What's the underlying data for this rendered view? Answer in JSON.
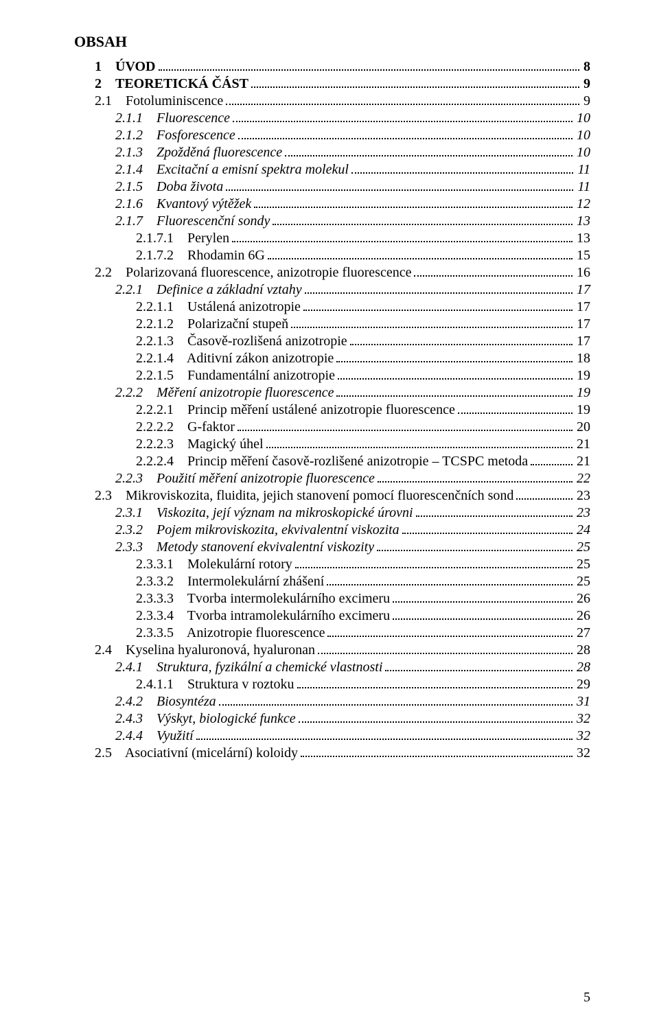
{
  "title": "OBSAH",
  "page_number": "5",
  "font": {
    "family": "Times New Roman",
    "base_size_pt": 12,
    "heading_size_pt": 13
  },
  "colors": {
    "text": "#000000",
    "background": "#ffffff",
    "leader": "#000000"
  },
  "entries": [
    {
      "level": 0,
      "num": "1",
      "title": "ÚVOD",
      "page": "8",
      "bold": true
    },
    {
      "level": 0,
      "num": "2",
      "title": "TEORETICKÁ ČÁST",
      "page": "9",
      "bold": true
    },
    {
      "level": 1,
      "num": "2.1",
      "title": "Fotoluminiscence",
      "page": "9"
    },
    {
      "level": 2,
      "num": "2.1.1",
      "title": "Fluorescence",
      "page": "10",
      "italic": true
    },
    {
      "level": 2,
      "num": "2.1.2",
      "title": "Fosforescence",
      "page": "10",
      "italic": true
    },
    {
      "level": 2,
      "num": "2.1.3",
      "title": "Zpožděná fluorescence",
      "page": "10",
      "italic": true
    },
    {
      "level": 2,
      "num": "2.1.4",
      "title": "Excitační a emisní spektra molekul",
      "page": "11",
      "italic": true
    },
    {
      "level": 2,
      "num": "2.1.5",
      "title": "Doba života",
      "page": "11",
      "italic": true
    },
    {
      "level": 2,
      "num": "2.1.6",
      "title": "Kvantový výtěžek",
      "page": "12",
      "italic": true
    },
    {
      "level": 2,
      "num": "2.1.7",
      "title": "Fluorescenční sondy",
      "page": "13",
      "italic": true
    },
    {
      "level": 3,
      "num": "2.1.7.1",
      "title": "Perylen",
      "page": "13"
    },
    {
      "level": 3,
      "num": "2.1.7.2",
      "title": "Rhodamin 6G",
      "page": "15"
    },
    {
      "level": 1,
      "num": "2.2",
      "title": "Polarizovaná fluorescence, anizotropie fluorescence",
      "page": "16"
    },
    {
      "level": 2,
      "num": "2.2.1",
      "title": "Definice a základní vztahy",
      "page": "17",
      "italic": true
    },
    {
      "level": 3,
      "num": "2.2.1.1",
      "title": "Ustálená anizotropie",
      "page": "17"
    },
    {
      "level": 3,
      "num": "2.2.1.2",
      "title": "Polarizační stupeň",
      "page": "17"
    },
    {
      "level": 3,
      "num": "2.2.1.3",
      "title": "Časově-rozlišená anizotropie",
      "page": "17"
    },
    {
      "level": 3,
      "num": "2.2.1.4",
      "title": "Aditivní zákon anizotropie",
      "page": "18"
    },
    {
      "level": 3,
      "num": "2.2.1.5",
      "title": "Fundamentální anizotropie",
      "page": "19"
    },
    {
      "level": 2,
      "num": "2.2.2",
      "title": "Měření anizotropie fluorescence",
      "page": "19",
      "italic": true
    },
    {
      "level": 3,
      "num": "2.2.2.1",
      "title": "Princip měření ustálené anizotropie fluorescence",
      "page": "19"
    },
    {
      "level": 3,
      "num": "2.2.2.2",
      "title": "G-faktor",
      "page": "20"
    },
    {
      "level": 3,
      "num": "2.2.2.3",
      "title": "Magický úhel",
      "page": "21"
    },
    {
      "level": 3,
      "num": "2.2.2.4",
      "title": "Princip měření časově-rozlišené anizotropie – TCSPC metoda",
      "page": "21"
    },
    {
      "level": 2,
      "num": "2.2.3",
      "title": "Použití měření anizotropie fluorescence",
      "page": "22",
      "italic": true
    },
    {
      "level": 1,
      "num": "2.3",
      "title": "Mikroviskozita, fluidita, jejich stanovení pomocí fluorescenčních sond",
      "page": "23"
    },
    {
      "level": 2,
      "num": "2.3.1",
      "title": "Viskozita, její význam na mikroskopické úrovni",
      "page": "23",
      "italic": true
    },
    {
      "level": 2,
      "num": "2.3.2",
      "title": "Pojem mikroviskozita, ekvivalentní viskozita",
      "page": "24",
      "italic": true
    },
    {
      "level": 2,
      "num": "2.3.3",
      "title": "Metody stanovení ekvivalentní viskozity",
      "page": "25",
      "italic": true
    },
    {
      "level": 3,
      "num": "2.3.3.1",
      "title": "Molekulární rotory",
      "page": "25"
    },
    {
      "level": 3,
      "num": "2.3.3.2",
      "title": "Intermolekulární zhášení",
      "page": "25"
    },
    {
      "level": 3,
      "num": "2.3.3.3",
      "title": "Tvorba intermolekulárního excimeru",
      "page": "26"
    },
    {
      "level": 3,
      "num": "2.3.3.4",
      "title": "Tvorba intramolekulárního excimeru",
      "page": "26"
    },
    {
      "level": 3,
      "num": "2.3.3.5",
      "title": "Anizotropie fluorescence",
      "page": "27"
    },
    {
      "level": 1,
      "num": "2.4",
      "title": "Kyselina hyaluronová, hyaluronan",
      "page": "28"
    },
    {
      "level": 2,
      "num": "2.4.1",
      "title": "Struktura, fyzikální a chemické vlastnosti",
      "page": "28",
      "italic": true
    },
    {
      "level": 3,
      "num": "2.4.1.1",
      "title": "Struktura v roztoku",
      "page": "29"
    },
    {
      "level": 2,
      "num": "2.4.2",
      "title": "Biosyntéza",
      "page": "31",
      "italic": true
    },
    {
      "level": 2,
      "num": "2.4.3",
      "title": "Výskyt, biologické funkce",
      "page": "32",
      "italic": true
    },
    {
      "level": 2,
      "num": "2.4.4",
      "title": "Využití",
      "page": "32",
      "italic": true
    },
    {
      "level": 1,
      "num": "2.5",
      "title": "Asociativní (micelární) koloidy",
      "page": "32"
    }
  ]
}
